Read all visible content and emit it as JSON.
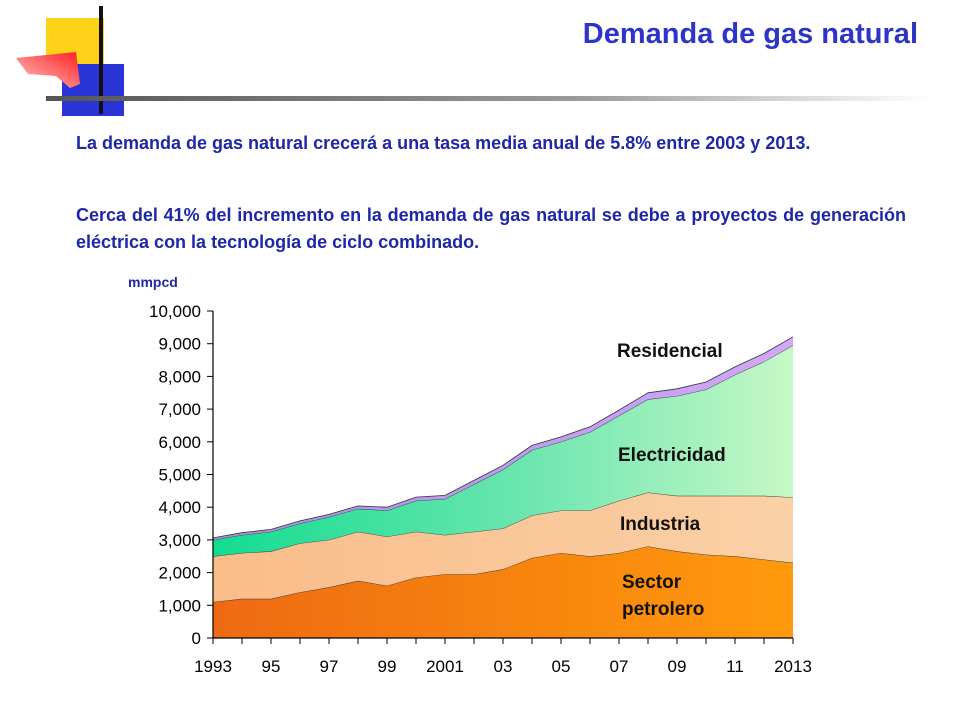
{
  "header": {
    "title": "Demanda de gas natural"
  },
  "text": {
    "paragraph1": "La demanda de gas natural crecerá a una tasa media anual de 5.8% entre 2003 y 2013.",
    "paragraph2": "Cerca del 41% del incremento en la demanda de gas natural se debe a proyectos de generación eléctrica con la tecnología de ciclo combinado."
  },
  "chart_data": {
    "type": "area",
    "stacked": true,
    "ylabel": "mmpcd",
    "ylim": [
      0,
      10000
    ],
    "yticks": [
      "0",
      "1,000",
      "2,000",
      "3,000",
      "4,000",
      "5,000",
      "6,000",
      "7,000",
      "8,000",
      "9,000",
      "10,000"
    ],
    "x": [
      1993,
      1994,
      1995,
      1996,
      1997,
      1998,
      1999,
      2000,
      2001,
      2002,
      2003,
      2004,
      2005,
      2006,
      2007,
      2008,
      2009,
      2010,
      2011,
      2012,
      2013
    ],
    "xtick_labels": [
      "1993",
      "95",
      "97",
      "99",
      "2001",
      "03",
      "05",
      "07",
      "09",
      "11",
      "2013"
    ],
    "xtick_years": [
      1993,
      1995,
      1997,
      1999,
      2001,
      2003,
      2005,
      2007,
      2009,
      2011,
      2013
    ],
    "series": [
      {
        "name": "Sector petrolero",
        "label_lines": [
          "Sector",
          "petrolero"
        ],
        "color": "#f07a10",
        "values": [
          1100,
          1200,
          1200,
          1400,
          1550,
          1750,
          1600,
          1850,
          1950,
          1950,
          2100,
          2450,
          2600,
          2500,
          2600,
          2800,
          2650,
          2550,
          2500,
          2400,
          2300
        ]
      },
      {
        "name": "Industria",
        "label_lines": [
          "Industria"
        ],
        "color": "#f8c694",
        "values": [
          1400,
          1400,
          1450,
          1500,
          1450,
          1500,
          1500,
          1400,
          1200,
          1300,
          1250,
          1300,
          1300,
          1400,
          1600,
          1650,
          1700,
          1800,
          1850,
          1950,
          2000
        ]
      },
      {
        "name": "Electricidad",
        "label_lines": [
          "Electricidad"
        ],
        "color": "#3fdca0",
        "values": [
          500,
          550,
          600,
          600,
          700,
          700,
          800,
          950,
          1100,
          1450,
          1800,
          2000,
          2100,
          2400,
          2600,
          2850,
          3050,
          3250,
          3700,
          4100,
          4650
        ]
      },
      {
        "name": "Residencial",
        "label_lines": [
          "Residencial"
        ],
        "color": "#c39cf0",
        "values": [
          60,
          70,
          70,
          80,
          80,
          90,
          100,
          110,
          110,
          120,
          130,
          140,
          150,
          160,
          170,
          200,
          220,
          230,
          240,
          250,
          260
        ]
      }
    ]
  }
}
